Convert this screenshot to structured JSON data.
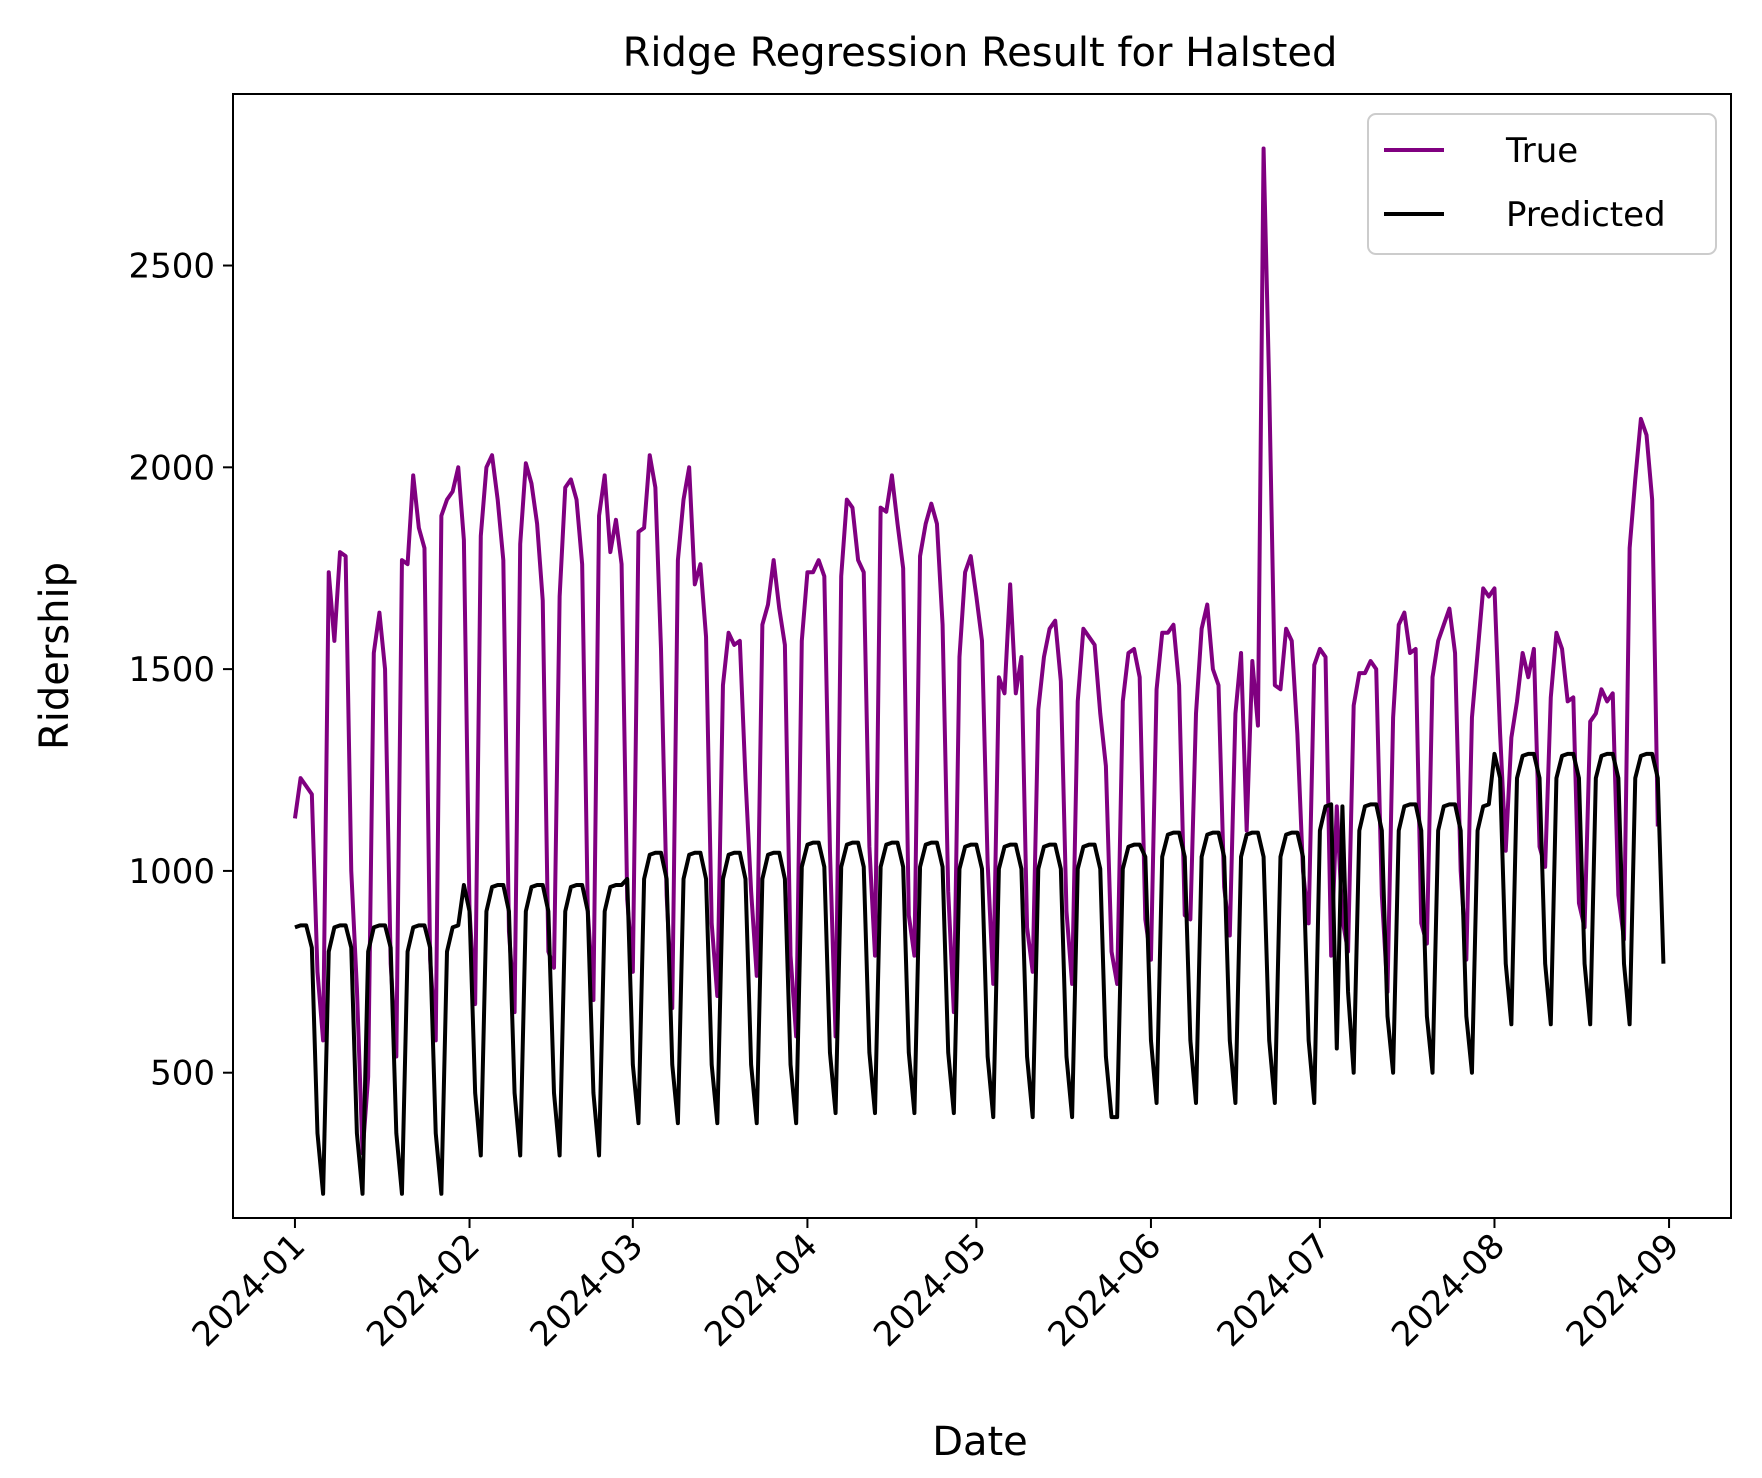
{
  "chart_data": {
    "type": "line",
    "title": "Ridge Regression Result for Halsted",
    "xlabel": "Date",
    "ylabel": "Ridership",
    "x_start": "2024-01-01",
    "x_end": "2024-08-31",
    "xlim": [
      "2023-12-21",
      "2024-09-12"
    ],
    "ylim": [
      140,
      2925
    ],
    "x_ticks": [
      {
        "label": "2024-01",
        "date": "2024-01-01"
      },
      {
        "label": "2024-02",
        "date": "2024-02-01"
      },
      {
        "label": "2024-03",
        "date": "2024-03-01"
      },
      {
        "label": "2024-04",
        "date": "2024-04-01"
      },
      {
        "label": "2024-05",
        "date": "2024-05-01"
      },
      {
        "label": "2024-06",
        "date": "2024-06-01"
      },
      {
        "label": "2024-07",
        "date": "2024-07-01"
      },
      {
        "label": "2024-08",
        "date": "2024-08-01"
      },
      {
        "label": "2024-09",
        "date": "2024-09-01"
      }
    ],
    "y_ticks": [
      500,
      1000,
      1500,
      2000,
      2500
    ],
    "legend_position": "top-right",
    "grid": false,
    "series": [
      {
        "name": "True",
        "color": "#800080",
        "values": [
          1130,
          1230,
          1210,
          1190,
          750,
          580,
          1740,
          1570,
          1790,
          1780,
          1000,
          710,
          300,
          490,
          1540,
          1640,
          1500,
          770,
          540,
          1770,
          1760,
          1980,
          1850,
          1800,
          780,
          580,
          1880,
          1920,
          1940,
          2000,
          1820,
          900,
          670,
          1830,
          2000,
          2030,
          1920,
          1770,
          850,
          650,
          1810,
          2010,
          1960,
          1860,
          1670,
          800,
          760,
          1680,
          1950,
          1970,
          1920,
          1760,
          900,
          680,
          1880,
          1980,
          1790,
          1870,
          1760,
          930,
          750,
          1840,
          1850,
          2030,
          1950,
          1550,
          940,
          660,
          1770,
          1920,
          2000,
          1710,
          1760,
          1580,
          870,
          690,
          1460,
          1590,
          1560,
          1570,
          1230,
          950,
          740,
          1610,
          1660,
          1770,
          1650,
          1560,
          790,
          590,
          1570,
          1740,
          1740,
          1770,
          1730,
          1050,
          590,
          1730,
          1920,
          1900,
          1770,
          1740,
          1060,
          790,
          1900,
          1890,
          1980,
          1860,
          1750,
          890,
          790,
          1780,
          1860,
          1910,
          1860,
          1610,
          950,
          650,
          1530,
          1740,
          1780,
          1680,
          1570,
          1020,
          720,
          1480,
          1440,
          1710,
          1440,
          1530,
          860,
          750,
          1400,
          1530,
          1600,
          1620,
          1470,
          900,
          720,
          1420,
          1600,
          1580,
          1560,
          1390,
          1260,
          800,
          720,
          1420,
          1540,
          1550,
          1480,
          880,
          780,
          1450,
          1590,
          1590,
          1610,
          1460,
          890,
          880,
          1390,
          1600,
          1660,
          1500,
          1460,
          960,
          840,
          1390,
          1540,
          1100,
          1520,
          1360,
          2790,
          2200,
          1460,
          1450,
          1600,
          1570,
          1340,
          1000,
          870,
          1510,
          1550,
          1530,
          790,
          1160,
          880,
          800,
          1410,
          1490,
          1490,
          1520,
          1500,
          940,
          700,
          1380,
          1610,
          1640,
          1540,
          1550,
          870,
          820,
          1480,
          1570,
          1610,
          1650,
          1540,
          1000,
          780,
          1380,
          1540,
          1700,
          1680,
          1700,
          1340,
          1050,
          1330,
          1420,
          1540,
          1480,
          1550,
          1060,
          1010,
          1430,
          1590,
          1550,
          1420,
          1430,
          920,
          860,
          1370,
          1390,
          1450,
          1420,
          1440,
          940,
          830,
          1800,
          1970,
          2120,
          2080,
          1920,
          1110
        ]
      },
      {
        "name": "Predicted",
        "color": "#000000",
        "values": [
          860,
          865,
          865,
          810,
          350,
          200,
          800,
          860,
          865,
          865,
          810,
          350,
          200,
          800,
          860,
          865,
          865,
          810,
          350,
          200,
          800,
          860,
          865,
          865,
          810,
          350,
          200,
          800,
          860,
          865,
          965,
          900,
          450,
          295,
          900,
          960,
          965,
          965,
          900,
          450,
          295,
          900,
          960,
          965,
          965,
          900,
          450,
          295,
          900,
          960,
          965,
          965,
          900,
          450,
          295,
          900,
          960,
          965,
          965,
          980,
          520,
          375,
          980,
          1040,
          1045,
          1045,
          980,
          520,
          375,
          980,
          1040,
          1045,
          1045,
          980,
          520,
          375,
          980,
          1040,
          1045,
          1045,
          980,
          520,
          375,
          980,
          1040,
          1045,
          1045,
          980,
          520,
          375,
          1010,
          1065,
          1070,
          1070,
          1010,
          550,
          400,
          1010,
          1065,
          1070,
          1070,
          1010,
          550,
          400,
          1010,
          1065,
          1070,
          1070,
          1010,
          550,
          400,
          1010,
          1065,
          1070,
          1070,
          1010,
          550,
          400,
          1005,
          1060,
          1065,
          1065,
          1005,
          540,
          390,
          1005,
          1060,
          1065,
          1065,
          1005,
          540,
          390,
          1005,
          1060,
          1065,
          1065,
          1005,
          540,
          390,
          1005,
          1060,
          1065,
          1065,
          1005,
          540,
          390,
          390,
          1005,
          1060,
          1065,
          1065,
          1035,
          580,
          425,
          1035,
          1090,
          1095,
          1095,
          1035,
          580,
          425,
          1035,
          1090,
          1095,
          1095,
          1035,
          580,
          425,
          1035,
          1090,
          1095,
          1095,
          1035,
          580,
          425,
          1035,
          1090,
          1095,
          1095,
          1035,
          580,
          425,
          1100,
          1160,
          1165,
          560,
          1160,
          700,
          500,
          1100,
          1160,
          1165,
          1165,
          1100,
          640,
          500,
          1100,
          1160,
          1165,
          1165,
          1100,
          640,
          500,
          1100,
          1160,
          1165,
          1165,
          1100,
          640,
          500,
          1100,
          1160,
          1165,
          1290,
          1230,
          770,
          620,
          1230,
          1285,
          1290,
          1290,
          1230,
          770,
          620,
          1230,
          1285,
          1290,
          1290,
          1230,
          770,
          620,
          1230,
          1285,
          1290,
          1290,
          1230,
          770,
          620,
          1230,
          1285,
          1290,
          1290,
          1230,
          770
        ]
      }
    ]
  }
}
